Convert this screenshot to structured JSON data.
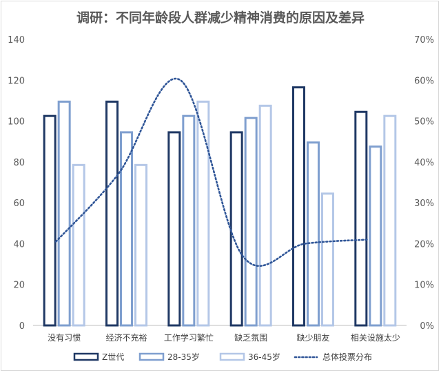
{
  "chart_data": {
    "type": "bar",
    "title": "调研：不同年龄段人群减少精神消费的原因及差异",
    "categories": [
      "没有习惯",
      "经济不充裕",
      "工作学习繁忙",
      "缺乏氛围",
      "缺少朋友",
      "相关设施太少"
    ],
    "series": [
      {
        "name": "Z世代",
        "values": [
          103,
          110,
          95,
          95,
          117,
          105
        ],
        "color": "#1f3864",
        "axis": "left"
      },
      {
        "name": "28-35岁",
        "values": [
          110,
          95,
          103,
          102,
          90,
          88
        ],
        "color": "#7f9fcf",
        "axis": "left"
      },
      {
        "name": "36-45岁",
        "values": [
          79,
          79,
          110,
          108,
          65,
          103
        ],
        "color": "#b4c7e7",
        "axis": "left"
      }
    ],
    "line_series": {
      "name": "总体投票分布",
      "values": [
        20.5,
        37,
        60,
        17,
        20,
        21
      ],
      "color": "#2f5597",
      "axis": "right",
      "style": "dotted"
    },
    "ylim": [
      0,
      140
    ],
    "yticks": [
      "0",
      "20",
      "40",
      "60",
      "80",
      "100",
      "120",
      "140"
    ],
    "y2lim": [
      0,
      70
    ],
    "y2ticks": [
      "0%",
      "10%",
      "20%",
      "30%",
      "40%",
      "50%",
      "60%",
      "70%"
    ],
    "legend_position": "bottom",
    "grid": false
  }
}
